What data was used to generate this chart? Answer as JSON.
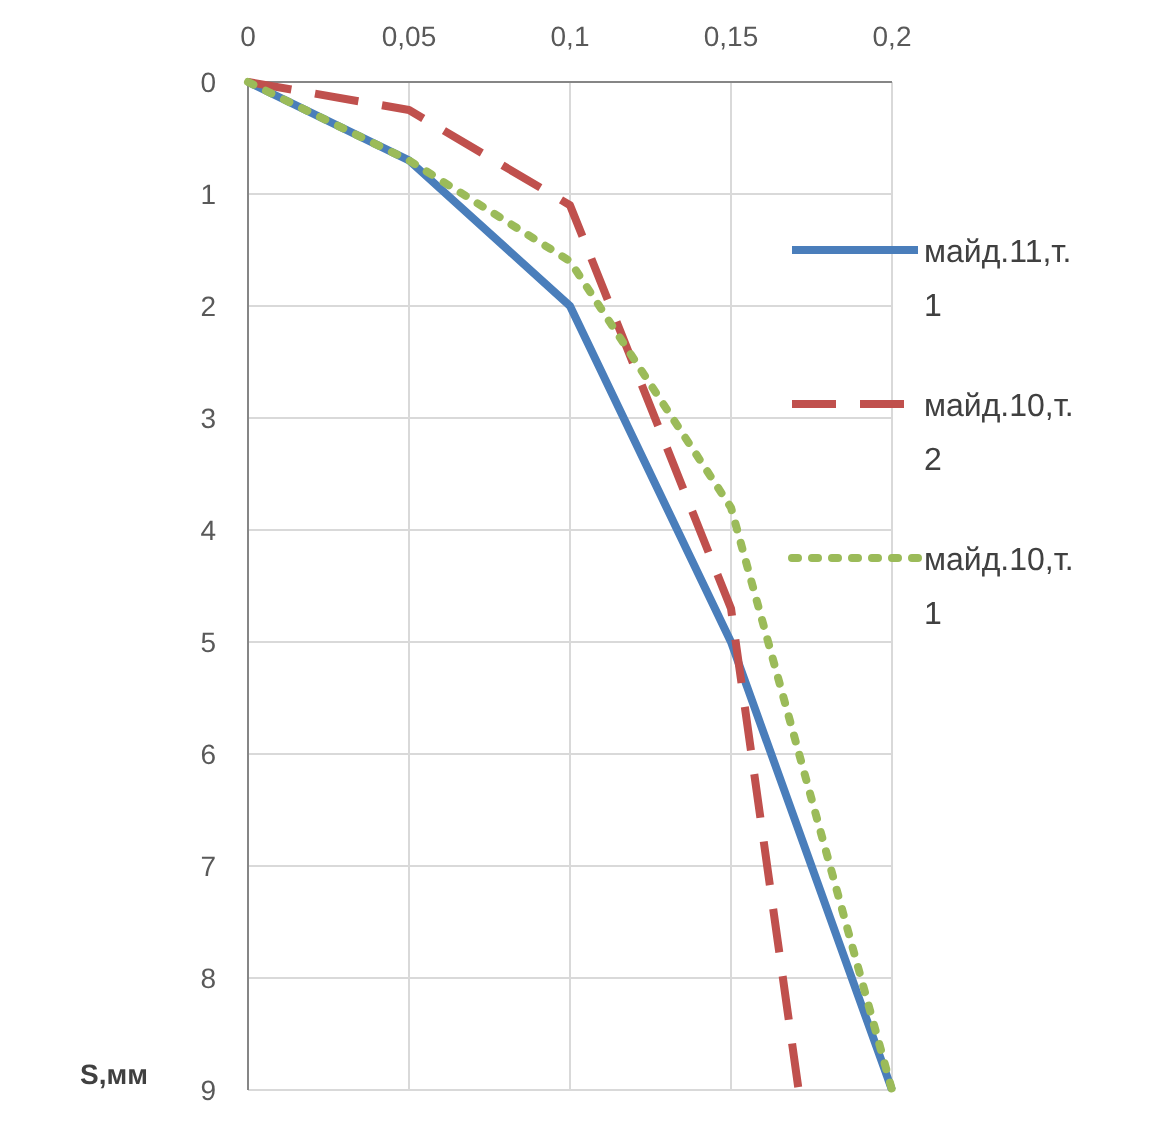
{
  "chart_data": {
    "type": "line",
    "ylabel": "S,мм",
    "xlim": [
      0,
      0.2
    ],
    "xticks": [
      {
        "value": 0,
        "label": "0"
      },
      {
        "value": 0.05,
        "label": "0,05"
      },
      {
        "value": 0.1,
        "label": "0,1"
      },
      {
        "value": 0.15,
        "label": "0,15"
      },
      {
        "value": 0.2,
        "label": "0,2"
      }
    ],
    "ylim": [
      9,
      0
    ],
    "yticks": [
      0,
      1,
      2,
      3,
      4,
      5,
      6,
      7,
      8,
      9
    ],
    "grid": true,
    "legend": "right",
    "series": [
      {
        "name": "майд.11,т.1",
        "color": "#4a7ebb",
        "line_style": "solid",
        "x": [
          0,
          0.05,
          0.1,
          0.15,
          0.2
        ],
        "values": [
          0,
          0.7,
          2,
          5,
          9
        ]
      },
      {
        "name": "майд.10,т.2",
        "color": "#c0504d",
        "line_style": "dashed",
        "x": [
          0,
          0.05,
          0.1,
          0.15,
          0.171
        ],
        "values": [
          0,
          0.25,
          1.1,
          4.7,
          9
        ]
      },
      {
        "name": "майд.10,т.1",
        "color": "#9bbb59",
        "line_style": "dotted",
        "x": [
          0,
          0.05,
          0.1,
          0.15,
          0.2
        ],
        "values": [
          0,
          0.7,
          1.6,
          3.8,
          9
        ]
      }
    ]
  }
}
